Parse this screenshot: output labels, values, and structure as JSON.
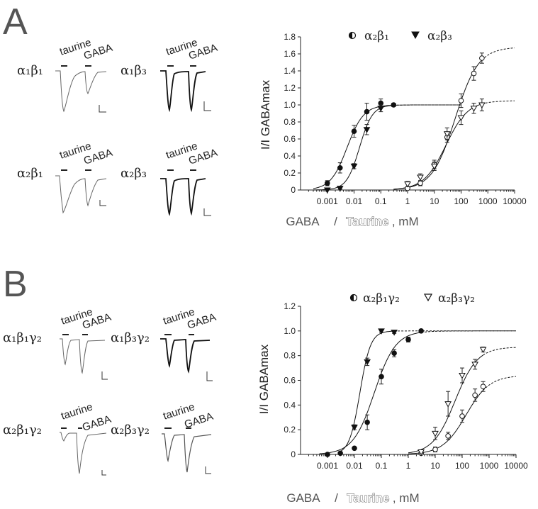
{
  "panels": [
    {
      "letter": "A",
      "recordings": [
        {
          "receptor": "α₁β₁",
          "taurine_label": "taurine",
          "gaba_label": "GABA"
        },
        {
          "receptor": "α₁β₃",
          "taurine_label": "taurine",
          "gaba_label": "GABA"
        },
        {
          "receptor": "α₂β₁",
          "taurine_label": "taurine",
          "gaba_label": "GABA"
        },
        {
          "receptor": "α₂β₃",
          "taurine_label": "taurine",
          "gaba_label": "GABA"
        }
      ],
      "legend": [
        {
          "symbol": "half-filled-circle-icon",
          "label": "α₂β₁"
        },
        {
          "symbol": "filled-down-triangle-icon",
          "label": "α₂β₃"
        }
      ],
      "ylabel": "I/I GABAmax",
      "xlabel_gaba": "GABA",
      "xlabel_sep": "/",
      "xlabel_taurine": "Taurine",
      "xlabel_unit": ", mM"
    },
    {
      "letter": "B",
      "recordings": [
        {
          "receptor": "α₁β₁γ₂",
          "taurine_label": "taurine",
          "gaba_label": "GABA"
        },
        {
          "receptor": "α₁β₃γ₂",
          "taurine_label": "taurine",
          "gaba_label": "GABA"
        },
        {
          "receptor": "α₂β₁γ₂",
          "taurine_label": "taurine",
          "gaba_label": "GABA"
        },
        {
          "receptor": "α₂β₃γ₂",
          "taurine_label": "taurine",
          "gaba_label": "GABA"
        }
      ],
      "legend": [
        {
          "symbol": "half-filled-circle-icon",
          "label": "α₂β₁γ₂"
        },
        {
          "symbol": "open-down-triangle-icon",
          "label": "α₂β₃γ₂"
        }
      ],
      "ylabel": "I/I GABAmax",
      "xlabel_gaba": "GABA",
      "xlabel_sep": "/",
      "xlabel_taurine": "Taurine",
      "xlabel_unit": ", mM"
    }
  ],
  "chart_data": [
    {
      "type": "scatter",
      "xscale": "log",
      "xlim": [
        0.0001,
        10000
      ],
      "xticks": [
        "0.001",
        "0.01",
        "0.1",
        "1",
        "10",
        "100",
        "1000",
        "10000"
      ],
      "ylim": [
        0,
        1.8
      ],
      "yticks": [
        "0",
        "0.2",
        "0.4",
        "0.6",
        "0.8",
        "1.0",
        "1.2",
        "1.4",
        "1.6",
        "1.8"
      ],
      "ylabel": "I/I GABAmax",
      "series": [
        {
          "name": "α₂β₁",
          "agonist": "GABA",
          "marker": "filled-circle",
          "x": [
            0.001,
            0.003,
            0.01,
            0.03,
            0.1,
            0.3
          ],
          "y": [
            0.08,
            0.26,
            0.69,
            0.92,
            1.02,
            1.0
          ],
          "err": [
            0.03,
            0.06,
            0.07,
            0.1,
            0.05,
            0.02
          ]
        },
        {
          "name": "α₂β₃",
          "agonist": "GABA",
          "marker": "filled-down-triangle",
          "x": [
            0.001,
            0.003,
            0.01,
            0.03,
            0.1
          ],
          "y": [
            0.0,
            0.02,
            0.28,
            0.71,
            0.96
          ],
          "err": [
            0.01,
            0.01,
            0.03,
            0.06,
            0.04
          ]
        },
        {
          "name": "α₂β₁",
          "agonist": "Taurine",
          "marker": "open-circle",
          "x": [
            1,
            3,
            10,
            30,
            100,
            300,
            600
          ],
          "y": [
            0.02,
            0.08,
            0.3,
            0.62,
            1.05,
            1.37,
            1.55
          ],
          "err": [
            0.01,
            0.03,
            0.05,
            0.06,
            0.08,
            0.08,
            0.06
          ]
        },
        {
          "name": "α₂β₃",
          "agonist": "Taurine",
          "marker": "open-down-triangle",
          "x": [
            1,
            3,
            10,
            30,
            100,
            300,
            600
          ],
          "y": [
            0.07,
            0.15,
            0.28,
            0.66,
            0.85,
            0.96,
            1.0
          ],
          "err": [
            0.03,
            0.04,
            0.05,
            0.07,
            0.08,
            0.06,
            0.07
          ]
        }
      ]
    },
    {
      "type": "scatter",
      "xscale": "log",
      "xlim": [
        0.0001,
        10000
      ],
      "xticks": [
        "0.001",
        "0.01",
        "0.1",
        "1",
        "10",
        "100",
        "1000",
        "10000"
      ],
      "ylim": [
        0,
        1.2
      ],
      "yticks": [
        "0",
        "0.2",
        "0.4",
        "0.6",
        "0.8",
        "1.0",
        "1.2"
      ],
      "ylabel": "I/I GABAmax",
      "series": [
        {
          "name": "α₂β₁γ₂",
          "agonist": "GABA",
          "marker": "filled-circle",
          "x": [
            0.001,
            0.003,
            0.01,
            0.03,
            0.1,
            0.3,
            1,
            3
          ],
          "y": [
            0.0,
            0.01,
            0.05,
            0.26,
            0.63,
            0.82,
            0.93,
            1.0
          ],
          "err": [
            0.01,
            0.01,
            0.01,
            0.06,
            0.06,
            0.03,
            0.02,
            0.01
          ]
        },
        {
          "name": "α₂β₃γ₂",
          "agonist": "GABA",
          "marker": "filled-down-triangle",
          "x": [
            0.01,
            0.03,
            0.1,
            0.3
          ],
          "y": [
            0.22,
            0.75,
            1.0,
            0.99
          ],
          "err": [
            0.02,
            0.03,
            0.01,
            0.01
          ]
        },
        {
          "name": "α₂β₁γ₂",
          "agonist": "Taurine",
          "marker": "open-circle",
          "x": [
            3,
            10,
            30,
            100,
            300,
            600
          ],
          "y": [
            0.01,
            0.04,
            0.15,
            0.31,
            0.48,
            0.55
          ],
          "err": [
            0.01,
            0.02,
            0.03,
            0.05,
            0.05,
            0.04
          ]
        },
        {
          "name": "α₂β₃γ₂",
          "agonist": "Taurine",
          "marker": "open-down-triangle",
          "x": [
            3,
            10,
            30,
            100,
            300,
            600
          ],
          "y": [
            0.02,
            0.17,
            0.41,
            0.64,
            0.73,
            0.85
          ],
          "err": [
            0.01,
            0.05,
            0.1,
            0.06,
            0.04,
            0.02
          ]
        }
      ]
    }
  ]
}
